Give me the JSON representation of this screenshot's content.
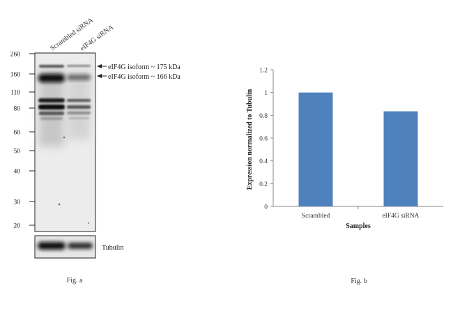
{
  "figure_a": {
    "lane_labels": [
      "Scrambled siRNA",
      "eIF4G siRNA"
    ],
    "ladder_kda": [
      "260",
      "160",
      "110",
      "80",
      "60",
      "50",
      "40",
      "30",
      "20"
    ],
    "annotations": [
      "eIF4G isoform ~ 175 kDa",
      "eIF4G isoform ~ 166 kDa"
    ],
    "tubulin_label": "Tubulin",
    "caption": "Fig. a"
  },
  "chart_data": {
    "type": "bar",
    "categories": [
      "Scrambled",
      "eIF4G siRNA"
    ],
    "values": [
      1.0,
      0.835
    ],
    "title": "",
    "xlabel": "Samples",
    "ylabel": "Expression normalized to Tubulin",
    "ylim": [
      0,
      1.2
    ],
    "yticks": [
      "0",
      "0.2",
      "0.4",
      "0.6",
      "0.8",
      "1",
      "1.2"
    ],
    "grid": false,
    "bar_color": "#4f81bd",
    "caption": "Fig. b"
  }
}
